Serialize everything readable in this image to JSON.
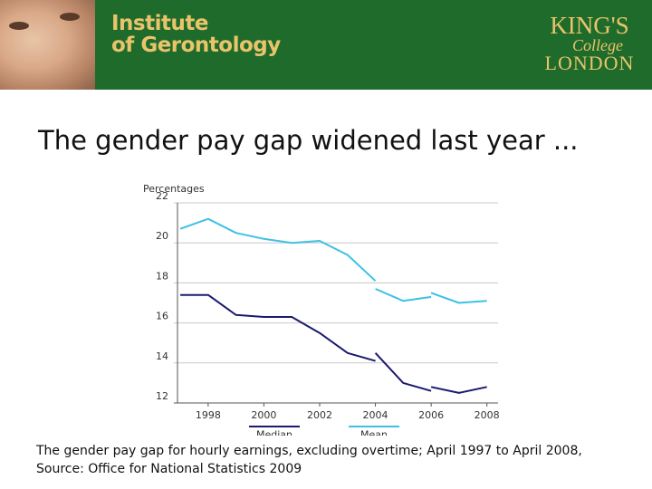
{
  "header": {
    "institute_line1": "Institute",
    "institute_line2": "of Gerontology",
    "kings_line1": "KING'S",
    "kings_line2": "College",
    "kings_line3": "LONDON",
    "banner_color": "#1f6b2c",
    "logo_text_color": "#e9c46a"
  },
  "slide": {
    "title": "The gender pay gap widened last year ...",
    "caption_line1": "The gender pay gap for hourly earnings, excluding overtime; April 1997 to April 2008,",
    "caption_line2": "Source: Office for National Statistics 2009"
  },
  "chart_data": {
    "type": "line",
    "ylabel": "Percentages",
    "xlim": [
      1996.9,
      2008.4
    ],
    "ylim": [
      12,
      22
    ],
    "yticks": [
      12,
      14,
      16,
      18,
      20,
      22
    ],
    "xticks": [
      1998,
      2000,
      2002,
      2004,
      2006,
      2008
    ],
    "grid": true,
    "legend_position": "bottom",
    "series": [
      {
        "name": "Median",
        "color": "#1a1a6e",
        "segments": [
          [
            [
              1997,
              17.4
            ],
            [
              1998,
              17.4
            ],
            [
              1999,
              16.4
            ],
            [
              2000,
              16.3
            ],
            [
              2001,
              16.3
            ],
            [
              2002,
              15.5
            ],
            [
              2003,
              14.5
            ],
            [
              2004,
              14.1
            ]
          ],
          [
            [
              2004,
              14.5
            ],
            [
              2005,
              13.0
            ],
            [
              2006,
              12.6
            ]
          ],
          [
            [
              2006,
              12.8
            ],
            [
              2007,
              12.5
            ],
            [
              2008,
              12.8
            ]
          ]
        ]
      },
      {
        "name": "Mean",
        "color": "#3ec1e3",
        "segments": [
          [
            [
              1997,
              20.7
            ],
            [
              1998,
              21.2
            ],
            [
              1999,
              20.5
            ],
            [
              2000,
              20.2
            ],
            [
              2001,
              20.0
            ],
            [
              2002,
              20.1
            ],
            [
              2003,
              19.4
            ],
            [
              2004,
              18.1
            ]
          ],
          [
            [
              2004,
              17.7
            ],
            [
              2005,
              17.1
            ],
            [
              2006,
              17.3
            ]
          ],
          [
            [
              2006,
              17.5
            ],
            [
              2007,
              17.0
            ],
            [
              2008,
              17.1
            ]
          ]
        ]
      }
    ]
  }
}
